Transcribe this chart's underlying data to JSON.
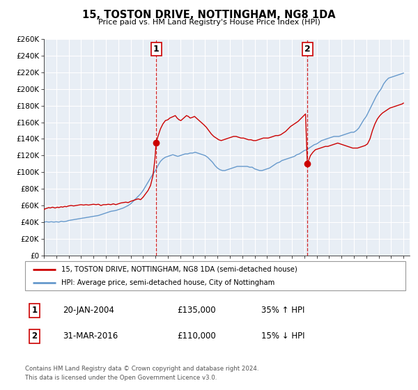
{
  "title": "15, TOSTON DRIVE, NOTTINGHAM, NG8 1DA",
  "subtitle": "Price paid vs. HM Land Registry's House Price Index (HPI)",
  "legend_line1": "15, TOSTON DRIVE, NOTTINGHAM, NG8 1DA (semi-detached house)",
  "legend_line2": "HPI: Average price, semi-detached house, City of Nottingham",
  "footer1": "Contains HM Land Registry data © Crown copyright and database right 2024.",
  "footer2": "This data is licensed under the Open Government Licence v3.0.",
  "annotation1_label": "1",
  "annotation1_date": "20-JAN-2004",
  "annotation1_price": "£135,000",
  "annotation1_hpi": "35% ↑ HPI",
  "annotation2_label": "2",
  "annotation2_date": "31-MAR-2016",
  "annotation2_price": "£110,000",
  "annotation2_hpi": "15% ↓ HPI",
  "price_color": "#cc0000",
  "hpi_color": "#6699cc",
  "vline_color": "#cc0000",
  "marker1_x": 2004.05,
  "marker1_y": 135000,
  "marker2_x": 2016.25,
  "marker2_y": 110000,
  "vline1_x": 2004.05,
  "vline2_x": 2016.25,
  "ylim_min": 0,
  "ylim_max": 260000,
  "xlim_min": 1995,
  "xlim_max": 2024.5,
  "yticks": [
    0,
    20000,
    40000,
    60000,
    80000,
    100000,
    120000,
    140000,
    160000,
    180000,
    200000,
    220000,
    240000,
    260000
  ],
  "ytick_labels": [
    "£0",
    "£20K",
    "£40K",
    "£60K",
    "£80K",
    "£100K",
    "£120K",
    "£140K",
    "£160K",
    "£180K",
    "£200K",
    "£220K",
    "£240K",
    "£260K"
  ],
  "xticks": [
    1995,
    1996,
    1997,
    1998,
    1999,
    2000,
    2001,
    2002,
    2003,
    2004,
    2005,
    2006,
    2007,
    2008,
    2009,
    2010,
    2011,
    2012,
    2013,
    2014,
    2015,
    2016,
    2017,
    2018,
    2019,
    2020,
    2021,
    2022,
    2023,
    2024
  ],
  "price_data_x": [
    1995.0,
    1995.1,
    1995.2,
    1995.3,
    1995.4,
    1995.5,
    1995.6,
    1995.7,
    1995.8,
    1995.9,
    1996.0,
    1996.1,
    1996.2,
    1996.3,
    1996.4,
    1996.5,
    1996.6,
    1996.7,
    1996.8,
    1996.9,
    1997.0,
    1997.2,
    1997.4,
    1997.6,
    1997.8,
    1998.0,
    1998.2,
    1998.4,
    1998.6,
    1998.8,
    1999.0,
    1999.2,
    1999.4,
    1999.6,
    1999.8,
    2000.0,
    2000.2,
    2000.4,
    2000.6,
    2000.8,
    2001.0,
    2001.2,
    2001.4,
    2001.6,
    2001.8,
    2002.0,
    2002.2,
    2002.4,
    2002.6,
    2002.8,
    2003.0,
    2003.2,
    2003.4,
    2003.6,
    2003.8,
    2003.95,
    2004.05,
    2004.2,
    2004.4,
    2004.6,
    2004.8,
    2005.0,
    2005.15,
    2005.3,
    2005.45,
    2005.6,
    2005.75,
    2005.9,
    2006.05,
    2006.2,
    2006.35,
    2006.5,
    2006.65,
    2006.8,
    2007.0,
    2007.15,
    2007.3,
    2007.45,
    2007.6,
    2007.75,
    2007.9,
    2008.1,
    2008.3,
    2008.5,
    2008.7,
    2008.9,
    2009.1,
    2009.3,
    2009.5,
    2009.7,
    2009.9,
    2010.1,
    2010.3,
    2010.5,
    2010.7,
    2010.9,
    2011.1,
    2011.3,
    2011.5,
    2011.7,
    2011.9,
    2012.1,
    2012.3,
    2012.5,
    2012.7,
    2012.9,
    2013.1,
    2013.3,
    2013.5,
    2013.7,
    2013.9,
    2014.1,
    2014.3,
    2014.5,
    2014.7,
    2014.9,
    2015.1,
    2015.3,
    2015.5,
    2015.7,
    2015.9,
    2016.1,
    2016.25,
    2016.5,
    2016.7,
    2016.9,
    2017.1,
    2017.3,
    2017.5,
    2017.7,
    2017.9,
    2018.1,
    2018.3,
    2018.5,
    2018.7,
    2018.9,
    2019.1,
    2019.3,
    2019.5,
    2019.7,
    2019.9,
    2020.1,
    2020.3,
    2020.5,
    2020.7,
    2020.9,
    2021.1,
    2021.3,
    2021.5,
    2021.7,
    2021.9,
    2022.1,
    2022.3,
    2022.5,
    2022.7,
    2022.9,
    2023.1,
    2023.3,
    2023.5,
    2023.7,
    2023.9,
    2024.0
  ],
  "price_data_y": [
    55000,
    56000,
    56500,
    57000,
    57500,
    57000,
    57500,
    58000,
    57500,
    57000,
    57500,
    58000,
    57500,
    58000,
    58500,
    58000,
    58500,
    59000,
    58500,
    59000,
    59500,
    60000,
    59500,
    60000,
    60500,
    61000,
    60500,
    61000,
    60500,
    61000,
    61500,
    61000,
    61500,
    60000,
    61000,
    61000,
    61500,
    61000,
    62000,
    61000,
    62000,
    63000,
    63500,
    64000,
    63500,
    65000,
    66000,
    67000,
    68000,
    67000,
    70000,
    74000,
    78000,
    84000,
    96000,
    115000,
    135000,
    143000,
    152000,
    158000,
    162000,
    163000,
    165000,
    166000,
    167000,
    168000,
    165000,
    163000,
    162000,
    164000,
    166000,
    168000,
    167000,
    165000,
    166000,
    167000,
    165000,
    163000,
    161000,
    159000,
    157000,
    154000,
    150000,
    146000,
    143000,
    141000,
    139000,
    138000,
    139000,
    140000,
    141000,
    142000,
    143000,
    143000,
    142000,
    141000,
    141000,
    140000,
    139000,
    139000,
    138000,
    138000,
    139000,
    140000,
    141000,
    141000,
    141000,
    142000,
    143000,
    144000,
    144000,
    145000,
    147000,
    149000,
    152000,
    155000,
    157000,
    159000,
    161000,
    164000,
    167000,
    170000,
    110000,
    120000,
    124000,
    127000,
    128000,
    129000,
    130000,
    131000,
    131000,
    132000,
    133000,
    134000,
    135000,
    134000,
    133000,
    132000,
    131000,
    130000,
    129000,
    129000,
    129000,
    130000,
    131000,
    132000,
    134000,
    140000,
    150000,
    158000,
    164000,
    168000,
    171000,
    173000,
    175000,
    177000,
    178000,
    179000,
    180000,
    181000,
    182000,
    183000
  ],
  "hpi_data_x": [
    1995.0,
    1995.2,
    1995.4,
    1995.6,
    1995.8,
    1996.0,
    1996.2,
    1996.4,
    1996.6,
    1996.8,
    1997.0,
    1997.2,
    1997.4,
    1997.6,
    1997.8,
    1998.0,
    1998.2,
    1998.4,
    1998.6,
    1998.8,
    1999.0,
    1999.2,
    1999.4,
    1999.6,
    1999.8,
    2000.0,
    2000.2,
    2000.4,
    2000.6,
    2000.8,
    2001.0,
    2001.2,
    2001.4,
    2001.6,
    2001.8,
    2002.0,
    2002.2,
    2002.4,
    2002.6,
    2002.8,
    2003.0,
    2003.2,
    2003.4,
    2003.6,
    2003.8,
    2004.0,
    2004.2,
    2004.4,
    2004.6,
    2004.8,
    2005.0,
    2005.2,
    2005.4,
    2005.6,
    2005.8,
    2006.0,
    2006.2,
    2006.4,
    2006.6,
    2006.8,
    2007.0,
    2007.2,
    2007.4,
    2007.6,
    2007.8,
    2008.0,
    2008.2,
    2008.4,
    2008.6,
    2008.8,
    2009.0,
    2009.2,
    2009.4,
    2009.6,
    2009.8,
    2010.0,
    2010.2,
    2010.4,
    2010.6,
    2010.8,
    2011.0,
    2011.2,
    2011.4,
    2011.6,
    2011.8,
    2012.0,
    2012.2,
    2012.4,
    2012.6,
    2012.8,
    2013.0,
    2013.2,
    2013.4,
    2013.6,
    2013.8,
    2014.0,
    2014.2,
    2014.4,
    2014.6,
    2014.8,
    2015.0,
    2015.2,
    2015.4,
    2015.6,
    2015.8,
    2016.0,
    2016.2,
    2016.4,
    2016.6,
    2016.8,
    2017.0,
    2017.2,
    2017.4,
    2017.6,
    2017.8,
    2018.0,
    2018.2,
    2018.4,
    2018.6,
    2018.8,
    2019.0,
    2019.2,
    2019.4,
    2019.6,
    2019.8,
    2020.0,
    2020.2,
    2020.4,
    2020.6,
    2020.8,
    2021.0,
    2021.2,
    2021.4,
    2021.6,
    2021.8,
    2022.0,
    2022.2,
    2022.4,
    2022.6,
    2022.8,
    2023.0,
    2023.2,
    2023.4,
    2023.6,
    2023.8,
    2024.0
  ],
  "hpi_data_y": [
    40000,
    40500,
    40000,
    40500,
    40000,
    40500,
    40000,
    41000,
    40500,
    41000,
    42000,
    42500,
    43000,
    43500,
    44000,
    44500,
    45000,
    45500,
    46000,
    46500,
    47000,
    47500,
    48000,
    49000,
    50000,
    51000,
    52000,
    53000,
    53500,
    54000,
    55000,
    56000,
    57000,
    58500,
    60000,
    62000,
    65000,
    68000,
    71000,
    74000,
    78000,
    83000,
    88000,
    93000,
    98000,
    102000,
    108000,
    113000,
    116000,
    118000,
    119000,
    120000,
    121000,
    120000,
    119000,
    120000,
    121000,
    122000,
    122000,
    123000,
    123000,
    124000,
    123000,
    122000,
    121000,
    120000,
    118000,
    115000,
    112000,
    108000,
    105000,
    103000,
    102000,
    102000,
    103000,
    104000,
    105000,
    106000,
    107000,
    107000,
    107000,
    107000,
    107000,
    106000,
    106000,
    104000,
    103000,
    102000,
    102000,
    103000,
    104000,
    105000,
    107000,
    109000,
    111000,
    112000,
    114000,
    115000,
    116000,
    117000,
    118000,
    119000,
    121000,
    122000,
    124000,
    126000,
    127000,
    129000,
    131000,
    133000,
    134000,
    136000,
    138000,
    139000,
    140000,
    141000,
    142000,
    143000,
    143000,
    143000,
    144000,
    145000,
    146000,
    147000,
    148000,
    148000,
    150000,
    153000,
    158000,
    163000,
    167000,
    173000,
    179000,
    185000,
    191000,
    196000,
    200000,
    206000,
    210000,
    213000,
    214000,
    215000,
    216000,
    217000,
    218000,
    219000
  ]
}
